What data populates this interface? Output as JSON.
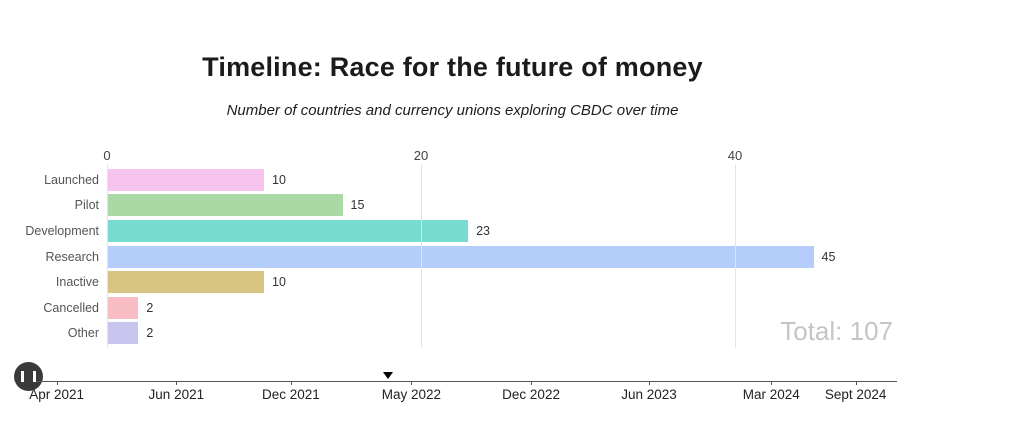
{
  "header": {
    "title": "Timeline: Race for the future of money",
    "subtitle": "Number of countries and currency unions exploring CBDC over time"
  },
  "chart_data": {
    "type": "bar",
    "orientation": "horizontal",
    "title": "Timeline: Race for the future of money",
    "subtitle": "Number of countries and currency unions exploring CBDC over time",
    "categories": [
      "Launched",
      "Pilot",
      "Development",
      "Research",
      "Inactive",
      "Cancelled",
      "Other"
    ],
    "values": [
      10,
      15,
      23,
      45,
      10,
      2,
      2
    ],
    "bar_colors": [
      "#f6c3ef",
      "#abd9a6",
      "#78dbd1",
      "#b4cdfb",
      "#d7c480",
      "#f8bcc3",
      "#c8c5ee"
    ],
    "value_axis": {
      "ticks": [
        0,
        20,
        40
      ],
      "position": "top",
      "grid": true
    },
    "xlim": [
      0,
      50
    ],
    "total_text": "Total: 107"
  },
  "timeline": {
    "labels": [
      "Apr 2021",
      "Jun 2021",
      "Dec 2021",
      "May 2022",
      "Dec 2022",
      "Jun 2023",
      "Mar 2024",
      "Sept 2024"
    ],
    "positions": [
      0.024,
      0.163,
      0.296,
      0.436,
      0.575,
      0.712,
      0.854,
      0.952
    ],
    "marker_position": 0.409,
    "current_label": "May 2022"
  },
  "controls": {
    "pause_icon": "pause"
  }
}
